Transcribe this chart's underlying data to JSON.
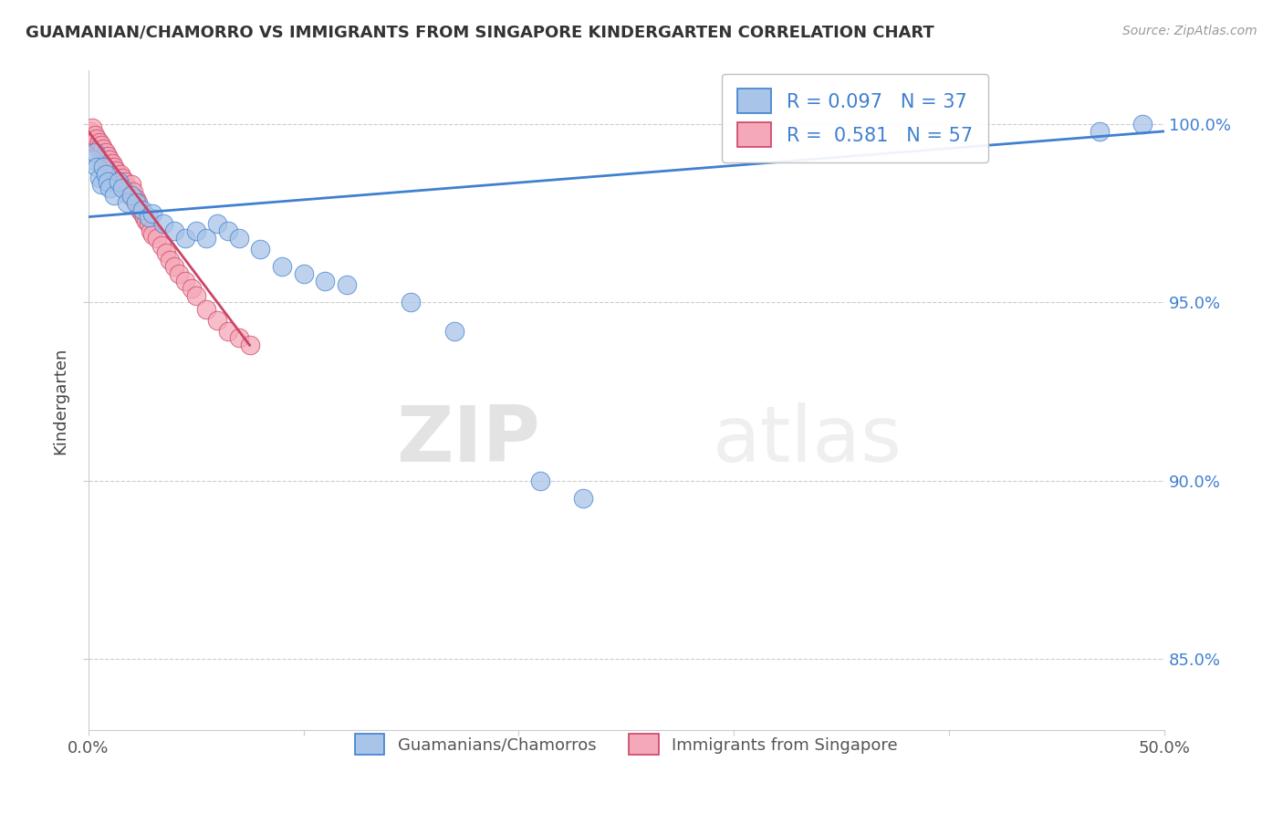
{
  "title": "GUAMANIAN/CHAMORRO VS IMMIGRANTS FROM SINGAPORE KINDERGARTEN CORRELATION CHART",
  "source": "Source: ZipAtlas.com",
  "ylabel": "Kindergarten",
  "xlim": [
    0.0,
    0.5
  ],
  "ylim": [
    0.83,
    1.015
  ],
  "yticks": [
    0.85,
    0.9,
    0.95,
    1.0
  ],
  "ytick_labels": [
    "85.0%",
    "90.0%",
    "95.0%",
    "100.0%"
  ],
  "xticks": [
    0.0,
    0.1,
    0.2,
    0.3,
    0.4,
    0.5
  ],
  "xtick_labels": [
    "0.0%",
    "",
    "",
    "",
    "",
    "50.0%"
  ],
  "blue_R": 0.097,
  "blue_N": 37,
  "pink_R": 0.581,
  "pink_N": 57,
  "blue_color": "#a8c4e8",
  "pink_color": "#f5a8b8",
  "blue_line_color": "#4080d0",
  "pink_line_color": "#cc4466",
  "watermark_zip": "ZIP",
  "watermark_atlas": "atlas",
  "background_color": "#ffffff",
  "blue_scatter_x": [
    0.002,
    0.003,
    0.004,
    0.005,
    0.006,
    0.007,
    0.008,
    0.009,
    0.01,
    0.012,
    0.014,
    0.016,
    0.018,
    0.02,
    0.022,
    0.025,
    0.028,
    0.03,
    0.035,
    0.04,
    0.045,
    0.05,
    0.055,
    0.06,
    0.065,
    0.07,
    0.08,
    0.09,
    0.1,
    0.11,
    0.12,
    0.15,
    0.17,
    0.21,
    0.23,
    0.47,
    0.49
  ],
  "blue_scatter_y": [
    0.99,
    0.992,
    0.988,
    0.985,
    0.983,
    0.988,
    0.986,
    0.984,
    0.982,
    0.98,
    0.984,
    0.982,
    0.978,
    0.98,
    0.978,
    0.976,
    0.974,
    0.975,
    0.972,
    0.97,
    0.968,
    0.97,
    0.968,
    0.972,
    0.97,
    0.968,
    0.965,
    0.96,
    0.958,
    0.956,
    0.955,
    0.95,
    0.942,
    0.9,
    0.895,
    0.998,
    1.0
  ],
  "pink_scatter_x": [
    0.001,
    0.002,
    0.002,
    0.003,
    0.003,
    0.004,
    0.004,
    0.005,
    0.005,
    0.006,
    0.006,
    0.007,
    0.007,
    0.008,
    0.008,
    0.009,
    0.009,
    0.01,
    0.01,
    0.011,
    0.011,
    0.012,
    0.012,
    0.013,
    0.013,
    0.014,
    0.015,
    0.015,
    0.016,
    0.017,
    0.018,
    0.019,
    0.02,
    0.021,
    0.022,
    0.023,
    0.024,
    0.025,
    0.026,
    0.027,
    0.028,
    0.029,
    0.03,
    0.032,
    0.034,
    0.036,
    0.038,
    0.04,
    0.042,
    0.045,
    0.048,
    0.05,
    0.055,
    0.06,
    0.065,
    0.07,
    0.075
  ],
  "pink_scatter_y": [
    0.998,
    0.996,
    0.999,
    0.995,
    0.997,
    0.994,
    0.996,
    0.993,
    0.995,
    0.992,
    0.994,
    0.991,
    0.993,
    0.99,
    0.992,
    0.989,
    0.991,
    0.988,
    0.99,
    0.987,
    0.989,
    0.986,
    0.988,
    0.985,
    0.987,
    0.984,
    0.986,
    0.983,
    0.985,
    0.984,
    0.982,
    0.98,
    0.983,
    0.981,
    0.979,
    0.978,
    0.976,
    0.975,
    0.974,
    0.973,
    0.972,
    0.97,
    0.969,
    0.968,
    0.966,
    0.964,
    0.962,
    0.96,
    0.958,
    0.956,
    0.954,
    0.952,
    0.948,
    0.945,
    0.942,
    0.94,
    0.938
  ],
  "blue_trendline_x": [
    0.0,
    0.5
  ],
  "blue_trendline_y": [
    0.974,
    0.998
  ],
  "pink_trendline_x": [
    0.0,
    0.075
  ],
  "pink_trendline_y": [
    0.998,
    0.938
  ]
}
